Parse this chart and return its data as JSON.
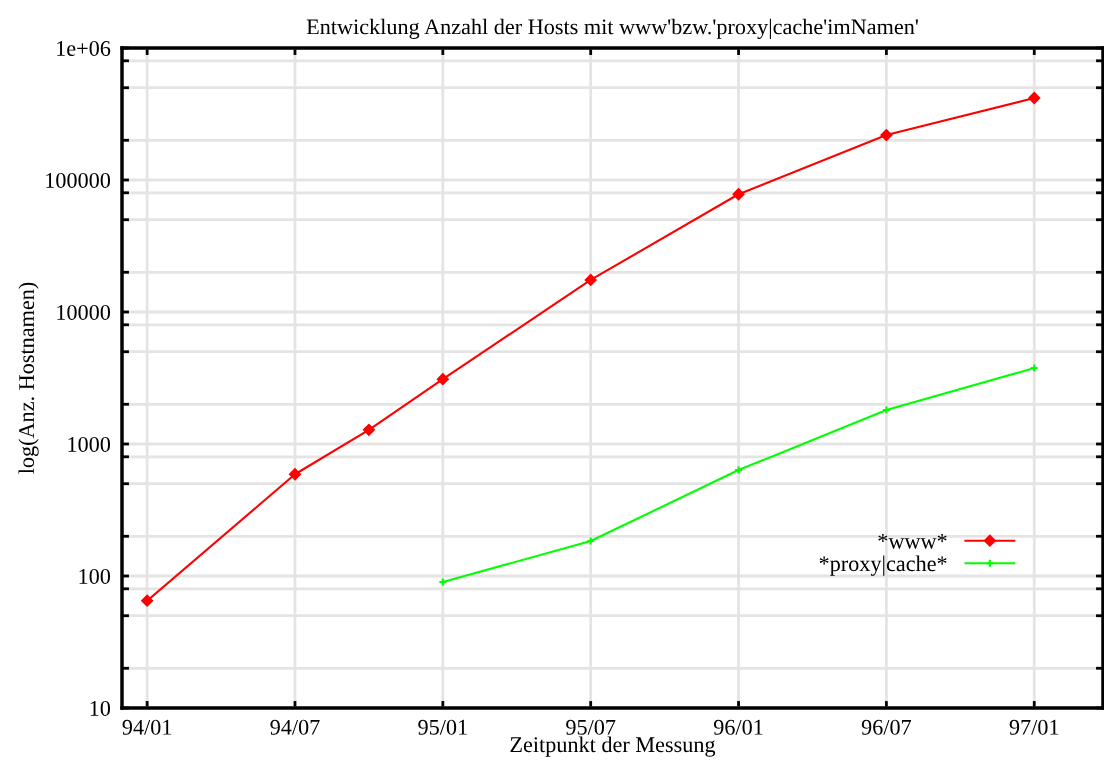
{
  "chart_data": {
    "type": "line",
    "title": "Entwicklung Anzahl der Hosts mit www'bzw.'proxy|cache'imNamen'",
    "xlabel": "Zeitpunkt der Messung",
    "ylabel": "log(Anz. Hostnamen)",
    "log": "y",
    "grid": true,
    "legend": "bottom right",
    "line_style": "solid",
    "categories": [
      "94/01",
      null,
      "94/07",
      null,
      "95/01",
      null,
      "95/07",
      null,
      "96/01",
      null,
      "96/07",
      null,
      "97/01"
    ],
    "ylim": [
      10,
      1000000
    ],
    "yticks": [
      10,
      {
        "value": 20,
        "label": null
      },
      {
        "value": 50,
        "label": null
      },
      {
        "value": 80,
        "label": null
      },
      100,
      {
        "value": 200,
        "label": null
      },
      {
        "value": 500,
        "label": null
      },
      {
        "value": 800,
        "label": null
      },
      1000,
      {
        "value": 2000,
        "label": null
      },
      {
        "value": 5000,
        "label": null
      },
      {
        "value": 8000,
        "label": null
      },
      10000,
      {
        "value": 20000,
        "label": null
      },
      {
        "value": 50000,
        "label": null
      },
      {
        "value": 80000,
        "label": null
      },
      100000,
      {
        "value": 200000,
        "label": null
      },
      {
        "value": 500000,
        "label": null
      },
      {
        "value": 800000,
        "label": null
      },
      {
        "value": 1000000,
        "label": "1e+06"
      }
    ],
    "series": [
      {
        "name": "*www*",
        "color": "#ff0000",
        "marker": "diamond",
        "values": [
          65,
          null,
          590,
          1280,
          3100,
          null,
          17500,
          null,
          78000,
          null,
          219000,
          null,
          418000
        ]
      },
      {
        "name": "*proxy|cache*",
        "color": "#00ff00",
        "marker": "cross",
        "values": [
          null,
          null,
          null,
          null,
          90,
          null,
          184,
          null,
          635,
          null,
          1810,
          null,
          3760
        ]
      }
    ]
  }
}
